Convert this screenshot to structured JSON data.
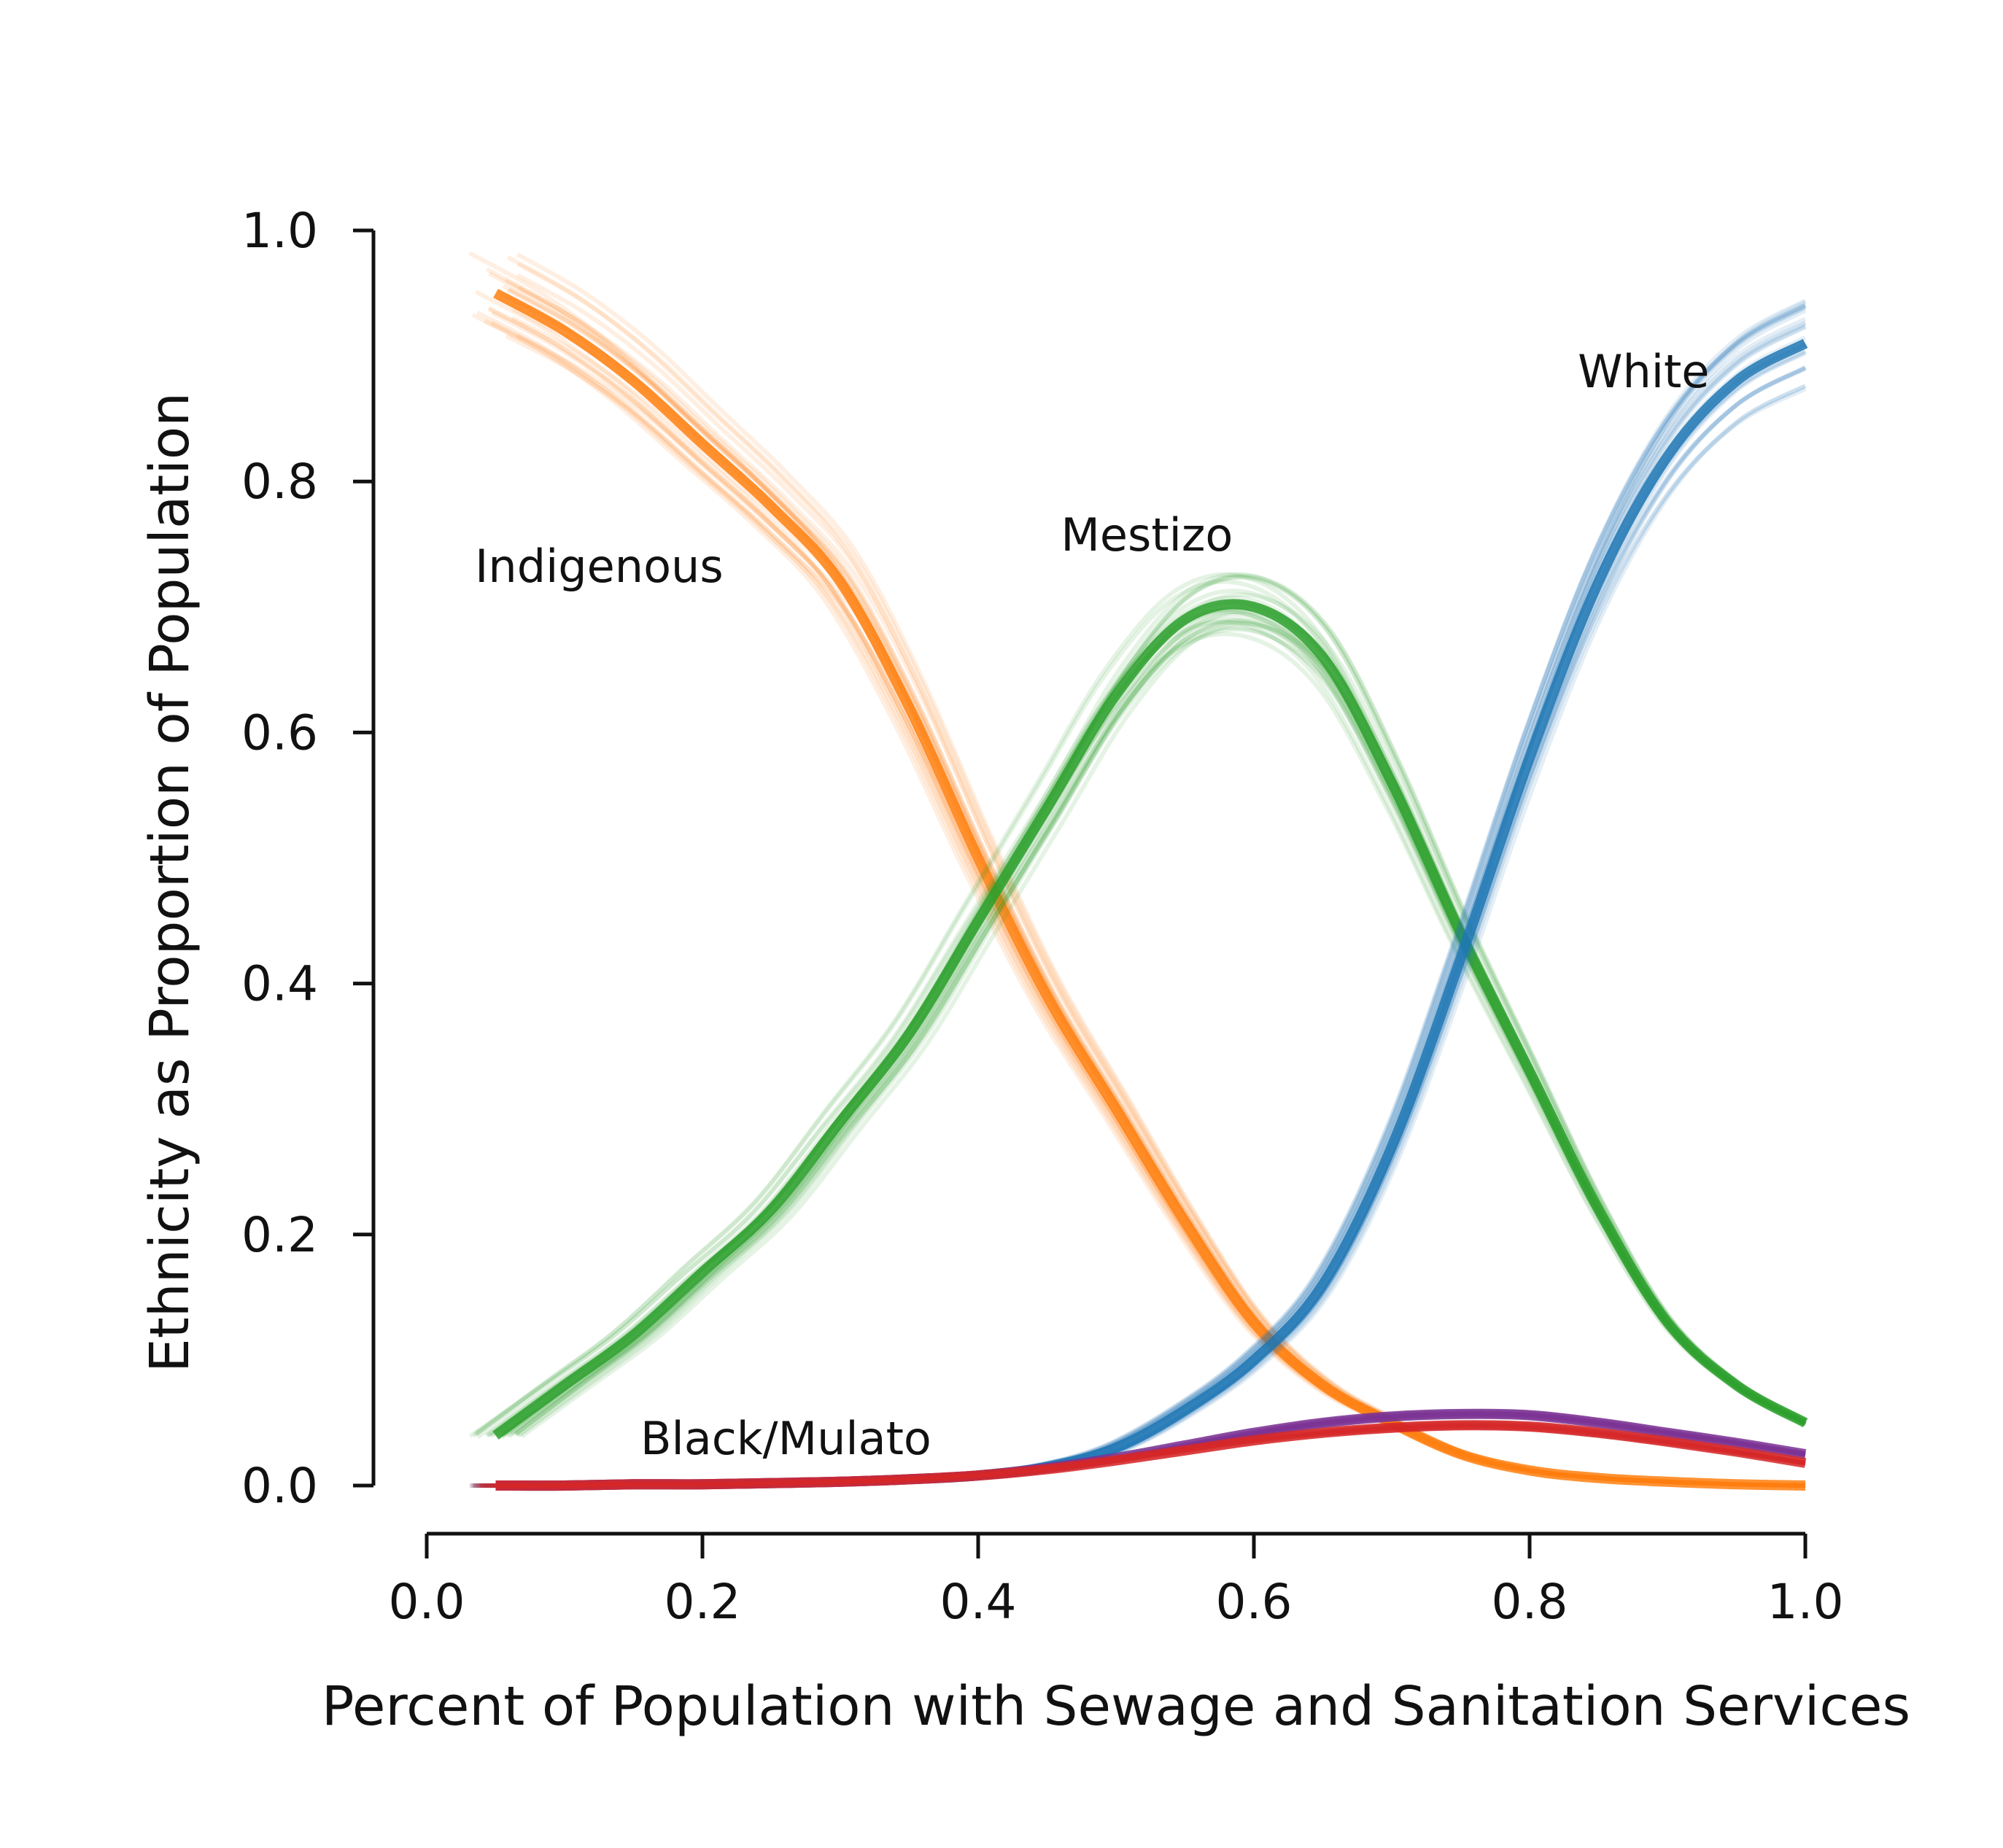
{
  "chart_data": {
    "type": "line",
    "xlabel": "Percent of Population with Sewage and Sanitation Services",
    "ylabel": "Ethnicity as Proportion of Population",
    "xlim": [
      0.0,
      1.0
    ],
    "ylim": [
      0.0,
      1.0
    ],
    "xticks": [
      "0.0",
      "0.2",
      "0.4",
      "0.6",
      "0.8",
      "1.0"
    ],
    "yticks": [
      "0.0",
      "0.2",
      "0.4",
      "0.6",
      "0.8",
      "1.0"
    ],
    "grid": false,
    "legend": "none",
    "series": [
      {
        "name": "Indigenous",
        "color": "#ff7f0e",
        "x": [
          0.05,
          0.1,
          0.15,
          0.2,
          0.25,
          0.3,
          0.35,
          0.4,
          0.45,
          0.5,
          0.55,
          0.6,
          0.65,
          0.7,
          0.75,
          0.8,
          0.85,
          0.9,
          0.95,
          1.0
        ],
        "y": [
          0.95,
          0.92,
          0.88,
          0.83,
          0.78,
          0.72,
          0.62,
          0.5,
          0.39,
          0.3,
          0.21,
          0.13,
          0.08,
          0.05,
          0.025,
          0.012,
          0.006,
          0.003,
          0.001,
          0.0
        ]
      },
      {
        "name": "Mestizo",
        "color": "#2ca02c",
        "x": [
          0.05,
          0.1,
          0.15,
          0.2,
          0.25,
          0.3,
          0.35,
          0.4,
          0.45,
          0.5,
          0.55,
          0.6,
          0.65,
          0.7,
          0.75,
          0.8,
          0.85,
          0.9,
          0.95,
          1.0
        ],
        "y": [
          0.04,
          0.08,
          0.12,
          0.17,
          0.22,
          0.29,
          0.36,
          0.45,
          0.54,
          0.63,
          0.69,
          0.7,
          0.66,
          0.56,
          0.44,
          0.33,
          0.22,
          0.13,
          0.08,
          0.05
        ]
      },
      {
        "name": "White",
        "color": "#1f77b4",
        "x": [
          0.05,
          0.1,
          0.15,
          0.2,
          0.25,
          0.3,
          0.35,
          0.4,
          0.45,
          0.5,
          0.55,
          0.6,
          0.65,
          0.7,
          0.75,
          0.8,
          0.85,
          0.9,
          0.95,
          1.0
        ],
        "y": [
          0.0,
          0.0,
          0.001,
          0.001,
          0.002,
          0.003,
          0.005,
          0.008,
          0.015,
          0.03,
          0.06,
          0.1,
          0.16,
          0.27,
          0.42,
          0.58,
          0.72,
          0.82,
          0.88,
          0.91
        ]
      },
      {
        "name": "Black/Mulato",
        "color": "#7b3294",
        "x": [
          0.05,
          0.1,
          0.15,
          0.2,
          0.25,
          0.3,
          0.35,
          0.4,
          0.45,
          0.5,
          0.55,
          0.6,
          0.65,
          0.7,
          0.75,
          0.8,
          0.85,
          0.9,
          0.95,
          1.0
        ],
        "y": [
          0.0,
          0.0,
          0.001,
          0.001,
          0.002,
          0.003,
          0.005,
          0.008,
          0.014,
          0.022,
          0.032,
          0.042,
          0.05,
          0.055,
          0.057,
          0.056,
          0.05,
          0.042,
          0.034,
          0.025
        ]
      },
      {
        "color": "#d62728",
        "x": [
          0.05,
          0.1,
          0.15,
          0.2,
          0.25,
          0.3,
          0.35,
          0.4,
          0.45,
          0.5,
          0.55,
          0.6,
          0.65,
          0.7,
          0.75,
          0.8,
          0.85,
          0.9,
          0.95,
          1.0
        ],
        "y": [
          0.0,
          0.0,
          0.001,
          0.001,
          0.002,
          0.003,
          0.005,
          0.008,
          0.013,
          0.02,
          0.028,
          0.036,
          0.042,
          0.046,
          0.048,
          0.047,
          0.042,
          0.035,
          0.027,
          0.018
        ]
      }
    ]
  }
}
